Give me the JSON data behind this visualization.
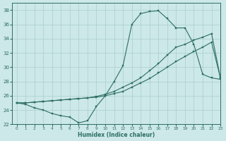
{
  "xlabel": "Humidex (Indice chaleur)",
  "background_color": "#cce8e8",
  "grid_color": "#aacece",
  "line_color": "#2d6e62",
  "xlim": [
    -0.5,
    23
  ],
  "ylim": [
    22,
    39
  ],
  "yticks": [
    22,
    24,
    26,
    28,
    30,
    32,
    34,
    36,
    38
  ],
  "xticks": [
    0,
    1,
    2,
    3,
    4,
    5,
    6,
    7,
    8,
    9,
    10,
    11,
    12,
    13,
    14,
    15,
    16,
    17,
    18,
    19,
    20,
    21,
    22,
    23
  ],
  "line1_x": [
    0,
    1,
    2,
    3,
    4,
    5,
    6,
    7,
    8,
    9,
    10,
    11,
    12,
    13,
    14,
    15,
    16,
    17,
    18,
    19,
    20,
    21,
    22,
    23
  ],
  "line1_y": [
    25.0,
    24.8,
    24.3,
    24.0,
    23.5,
    23.2,
    23.0,
    22.2,
    22.5,
    24.5,
    26.0,
    28.0,
    30.2,
    36.0,
    37.5,
    37.8,
    37.9,
    36.8,
    35.5,
    35.5,
    33.2,
    29.0,
    28.5,
    28.3
  ],
  "line2_x": [
    0,
    1,
    2,
    3,
    4,
    5,
    6,
    7,
    8,
    9,
    10,
    11,
    12,
    13,
    14,
    15,
    16,
    17,
    18,
    19,
    20,
    21,
    22,
    23
  ],
  "line2_y": [
    25.0,
    25.0,
    25.1,
    25.2,
    25.3,
    25.4,
    25.5,
    25.6,
    25.7,
    25.8,
    26.0,
    26.3,
    26.6,
    27.2,
    27.8,
    28.4,
    29.2,
    30.0,
    30.8,
    31.5,
    32.2,
    32.8,
    33.5,
    28.5
  ],
  "line3_x": [
    0,
    1,
    2,
    3,
    4,
    5,
    6,
    7,
    8,
    9,
    10,
    11,
    12,
    13,
    14,
    15,
    16,
    17,
    18,
    19,
    20,
    21,
    22,
    23
  ],
  "line3_y": [
    25.0,
    25.0,
    25.1,
    25.2,
    25.3,
    25.4,
    25.5,
    25.6,
    25.7,
    25.9,
    26.2,
    26.6,
    27.2,
    27.8,
    28.5,
    29.5,
    30.5,
    31.7,
    32.8,
    33.2,
    33.8,
    34.2,
    34.7,
    28.5
  ]
}
